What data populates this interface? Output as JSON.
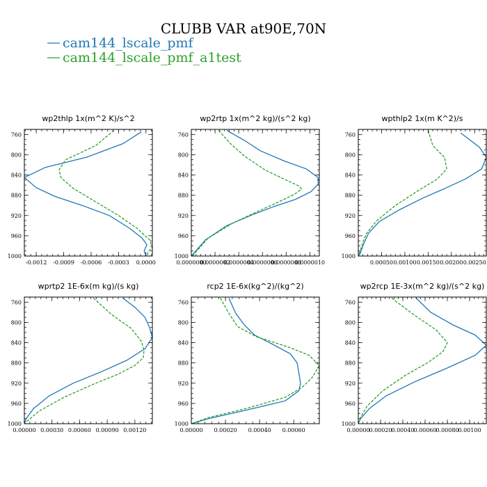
{
  "figure": {
    "title": "CLUBB VAR at90E,70N",
    "legend": [
      {
        "name": "cam144_lscale_pmf",
        "color": "#1f77b4",
        "dash": "solid"
      },
      {
        "name": "cam144_lscale_pmf_a1test",
        "color": "#2ca02c",
        "dash": "dashed"
      }
    ]
  },
  "chart_data": [
    {
      "type": "line",
      "title": "wp2thlp  1x(m^2 K)/s^2",
      "ylim": [
        1000,
        750
      ],
      "yticks": [
        {
          "v": 760,
          "t": "760"
        },
        {
          "v": 800,
          "t": "800"
        },
        {
          "v": 840,
          "t": "840"
        },
        {
          "v": 880,
          "t": "880"
        },
        {
          "v": 920,
          "t": "920"
        },
        {
          "v": 960,
          "t": "960"
        },
        {
          "v": 1000,
          "t": "1000"
        }
      ],
      "xlim": [
        -0.00133,
        7e-05
      ],
      "xticks": [
        {
          "v": -0.0012,
          "t": "-0.0012"
        },
        {
          "v": -0.0009,
          "t": "-0.0009"
        },
        {
          "v": -0.0006,
          "t": "-0.0006"
        },
        {
          "v": -0.0003,
          "t": "-0.0003"
        },
        {
          "v": 0.0,
          "t": "0.0000"
        }
      ],
      "series": [
        {
          "name": "cam144_lscale_pmf",
          "points": [
            [
              -5e-05,
              755
            ],
            [
              -0.00025,
              778
            ],
            [
              -0.00065,
              805
            ],
            [
              -0.0011,
              825
            ],
            [
              -0.00133,
              845
            ],
            [
              -0.0012,
              865
            ],
            [
              -0.001,
              882
            ],
            [
              -0.0007,
              900
            ],
            [
              -0.0004,
              920
            ],
            [
              -0.00018,
              945
            ],
            [
              -4e-05,
              965
            ],
            [
              1e-05,
              978
            ],
            [
              -2e-05,
              990
            ],
            [
              0.0,
              1000
            ]
          ]
        },
        {
          "name": "cam144_lscale_pmf_a1test",
          "points": [
            [
              -0.00035,
              752
            ],
            [
              -0.00055,
              782
            ],
            [
              -0.00088,
              810
            ],
            [
              -0.00095,
              830
            ],
            [
              -0.00093,
              845
            ],
            [
              -0.0008,
              866
            ],
            [
              -0.00055,
              893
            ],
            [
              -0.0003,
              920
            ],
            [
              -0.0001,
              945
            ],
            [
              4e-05,
              968
            ],
            [
              7e-05,
              982
            ],
            [
              2e-05,
              993
            ],
            [
              2e-05,
              1000
            ]
          ]
        }
      ]
    },
    {
      "type": "line",
      "title": "wp2rtp  1x(m^2 kg)/(s^2 kg)",
      "ylim": [
        1000,
        750
      ],
      "yticks": [
        {
          "v": 760,
          "t": "760"
        },
        {
          "v": 800,
          "t": "800"
        },
        {
          "v": 840,
          "t": "840"
        },
        {
          "v": 880,
          "t": "880"
        },
        {
          "v": 920,
          "t": "920"
        },
        {
          "v": 960,
          "t": "960"
        },
        {
          "v": 1000,
          "t": "1000"
        }
      ],
      "xlim": [
        0.0,
        1.08e-06
      ],
      "xticks": [
        {
          "v": 0.0,
          "t": "0.0000000"
        },
        {
          "v": 2e-07,
          "t": "0.0000002"
        },
        {
          "v": 4e-07,
          "t": "0.0000004"
        },
        {
          "v": 6e-07,
          "t": "0.0000006"
        },
        {
          "v": 8e-07,
          "t": "0.0000008"
        },
        {
          "v": 1e-06,
          "t": "0.0000010"
        }
      ],
      "series": [
        {
          "name": "cam144_lscale_pmf",
          "points": [
            [
              3e-07,
              752
            ],
            [
              4.5e-07,
              772
            ],
            [
              5.8e-07,
              792
            ],
            [
              7.8e-07,
              812
            ],
            [
              9.7e-07,
              828
            ],
            [
              1.07e-06,
              845
            ],
            [
              1.07e-06,
              858
            ],
            [
              1.01e-06,
              873
            ],
            [
              8.8e-07,
              888
            ],
            [
              7e-07,
              902
            ],
            [
              5.2e-07,
              918
            ],
            [
              3e-07,
              940
            ],
            [
              1.2e-07,
              968
            ],
            [
              0.0,
              1000
            ]
          ]
        },
        {
          "name": "cam144_lscale_pmf_a1test",
          "points": [
            [
              2.3e-07,
              752
            ],
            [
              3.3e-07,
              778
            ],
            [
              4.5e-07,
              803
            ],
            [
              6.2e-07,
              830
            ],
            [
              8e-07,
              850
            ],
            [
              9.1e-07,
              862
            ],
            [
              9.3e-07,
              868
            ],
            [
              8.7e-07,
              878
            ],
            [
              7.2e-07,
              895
            ],
            [
              5.5e-07,
              913
            ],
            [
              3.5e-07,
              935
            ],
            [
              1.4e-07,
              965
            ],
            [
              1e-08,
              1000
            ]
          ]
        }
      ]
    },
    {
      "type": "line",
      "title": "wpthlp2  1x(m K^2)/s",
      "ylim": [
        1000,
        750
      ],
      "yticks": [
        {
          "v": 760,
          "t": "760"
        },
        {
          "v": 800,
          "t": "800"
        },
        {
          "v": 840,
          "t": "840"
        },
        {
          "v": 880,
          "t": "880"
        },
        {
          "v": 920,
          "t": "920"
        },
        {
          "v": 960,
          "t": "960"
        },
        {
          "v": 1000,
          "t": "1000"
        }
      ],
      "xlim": [
        0.0,
        0.00275
      ],
      "xticks": [
        {
          "v": 0.0005,
          "t": "0.00050"
        },
        {
          "v": 0.001,
          "t": "0.00100"
        },
        {
          "v": 0.0015,
          "t": "0.00150"
        },
        {
          "v": 0.002,
          "t": "0.00200"
        },
        {
          "v": 0.0025,
          "t": "0.00250"
        }
      ],
      "series": [
        {
          "name": "cam144_lscale_pmf",
          "points": [
            [
              0.0022,
              757
            ],
            [
              0.0026,
              785
            ],
            [
              0.00275,
              805
            ],
            [
              0.00265,
              828
            ],
            [
              0.0023,
              848
            ],
            [
              0.0019,
              865
            ],
            [
              0.0014,
              885
            ],
            [
              0.0009,
              908
            ],
            [
              0.00045,
              932
            ],
            [
              0.00022,
              955
            ],
            [
              0.00012,
              975
            ],
            [
              4e-05,
              995
            ],
            [
              0.0,
              1000
            ]
          ]
        },
        {
          "name": "cam144_lscale_pmf_a1test",
          "points": [
            [
              0.0015,
              752
            ],
            [
              0.0016,
              782
            ],
            [
              0.00185,
              805
            ],
            [
              0.0019,
              828
            ],
            [
              0.0017,
              848
            ],
            [
              0.0013,
              870
            ],
            [
              0.0008,
              900
            ],
            [
              0.0004,
              930
            ],
            [
              0.00018,
              955
            ],
            [
              0.0001,
              972
            ],
            [
              4e-05,
              990
            ],
            [
              0.0,
              1000
            ]
          ]
        }
      ]
    },
    {
      "type": "line",
      "title": "wprtp2  1E-6x(m kg)/(s kg)",
      "ylim": [
        1000,
        750
      ],
      "yticks": [
        {
          "v": 760,
          "t": "760"
        },
        {
          "v": 800,
          "t": "800"
        },
        {
          "v": 840,
          "t": "840"
        },
        {
          "v": 880,
          "t": "880"
        },
        {
          "v": 920,
          "t": "920"
        },
        {
          "v": 960,
          "t": "960"
        },
        {
          "v": 1000,
          "t": "1000"
        }
      ],
      "xlim": [
        0.0,
        0.00139
      ],
      "xticks": [
        {
          "v": 0.0,
          "t": "0.00000"
        },
        {
          "v": 0.0003,
          "t": "0.00030"
        },
        {
          "v": 0.0006,
          "t": "0.00060"
        },
        {
          "v": 0.0009,
          "t": "0.00090"
        },
        {
          "v": 0.0012,
          "t": "0.00120"
        }
      ],
      "series": [
        {
          "name": "cam144_lscale_pmf",
          "points": [
            [
              0.00107,
              752
            ],
            [
              0.0012,
              770
            ],
            [
              0.00131,
              790
            ],
            [
              0.00136,
              810
            ],
            [
              0.00139,
              830
            ],
            [
              0.00131,
              852
            ],
            [
              0.00111,
              875
            ],
            [
              0.00083,
              898
            ],
            [
              0.00053,
              920
            ],
            [
              0.00027,
              945
            ],
            [
              0.0001,
              970
            ],
            [
              2e-05,
              990
            ],
            [
              0.0,
              1000
            ]
          ]
        },
        {
          "name": "cam144_lscale_pmf_a1test",
          "points": [
            [
              0.00075,
              752
            ],
            [
              0.00095,
              785
            ],
            [
              0.00116,
              812
            ],
            [
              0.00127,
              837
            ],
            [
              0.0013,
              855
            ],
            [
              0.00129,
              870
            ],
            [
              0.0012,
              885
            ],
            [
              0.00102,
              902
            ],
            [
              0.00075,
              922
            ],
            [
              0.00043,
              948
            ],
            [
              0.00016,
              975
            ],
            [
              3e-05,
              995
            ],
            [
              0.0,
              1000
            ]
          ]
        }
      ]
    },
    {
      "type": "line",
      "title": "rcp2  1E-6x(kg^2)/(kg^2)",
      "ylim": [
        1000,
        750
      ],
      "yticks": [
        {
          "v": 760,
          "t": "760"
        },
        {
          "v": 800,
          "t": "800"
        },
        {
          "v": 840,
          "t": "840"
        },
        {
          "v": 880,
          "t": "880"
        },
        {
          "v": 920,
          "t": "920"
        },
        {
          "v": 960,
          "t": "960"
        },
        {
          "v": 1000,
          "t": "1000"
        }
      ],
      "xlim": [
        0.0,
        0.00075
      ],
      "xticks": [
        {
          "v": 0.0,
          "t": "0.00000"
        },
        {
          "v": 0.0002,
          "t": "0.00020"
        },
        {
          "v": 0.0004,
          "t": "0.00040"
        },
        {
          "v": 0.0006,
          "t": "0.00060"
        }
      ],
      "series": [
        {
          "name": "cam144_lscale_pmf",
          "points": [
            [
              0.00022,
              752
            ],
            [
              0.00026,
              782
            ],
            [
              0.00031,
              805
            ],
            [
              0.00037,
              825
            ],
            [
              0.00047,
              842
            ],
            [
              0.00058,
              862
            ],
            [
              0.00062,
              880
            ],
            [
              0.00063,
              900
            ],
            [
              0.00064,
              920
            ],
            [
              0.00063,
              935
            ],
            [
              0.00055,
              955
            ],
            [
              0.0003,
              975
            ],
            [
              0.0001,
              990
            ],
            [
              0.0,
              1000
            ]
          ]
        },
        {
          "name": "cam144_lscale_pmf_a1test",
          "points": [
            [
              0.00017,
              752
            ],
            [
              0.00022,
              782
            ],
            [
              0.00027,
              808
            ],
            [
              0.00038,
              828
            ],
            [
              0.00058,
              850
            ],
            [
              0.00069,
              865
            ],
            [
              0.00075,
              885
            ],
            [
              0.00071,
              908
            ],
            [
              0.00065,
              928
            ],
            [
              0.00055,
              948
            ],
            [
              0.00032,
              970
            ],
            [
              0.0001,
              988
            ],
            [
              0.0,
              1000
            ]
          ]
        }
      ]
    },
    {
      "type": "line",
      "title": "wp2rcp  1E-3x(m^2 kg)/(s^2 kg)",
      "ylim": [
        1000,
        750
      ],
      "yticks": [
        {
          "v": 760,
          "t": "760"
        },
        {
          "v": 800,
          "t": "800"
        },
        {
          "v": 840,
          "t": "840"
        },
        {
          "v": 880,
          "t": "880"
        },
        {
          "v": 920,
          "t": "920"
        },
        {
          "v": 960,
          "t": "960"
        },
        {
          "v": 1000,
          "t": "1000"
        }
      ],
      "xlim": [
        0.0,
        0.00115
      ],
      "xticks": [
        {
          "v": 0.0,
          "t": "0.00000"
        },
        {
          "v": 0.0002,
          "t": "0.00020"
        },
        {
          "v": 0.0004,
          "t": "0.00040"
        },
        {
          "v": 0.0006,
          "t": "0.00060"
        },
        {
          "v": 0.0008,
          "t": "0.00080"
        },
        {
          "v": 0.001,
          "t": "0.00100"
        }
      ],
      "series": [
        {
          "name": "cam144_lscale_pmf",
          "points": [
            [
              0.00052,
              752
            ],
            [
              0.00065,
              780
            ],
            [
              0.00085,
              805
            ],
            [
              0.00105,
              825
            ],
            [
              0.00115,
              845
            ],
            [
              0.00105,
              865
            ],
            [
              0.0008,
              890
            ],
            [
              0.0005,
              918
            ],
            [
              0.00025,
              945
            ],
            [
              0.0001,
              970
            ],
            [
              2e-05,
              990
            ],
            [
              0.0,
              1000
            ]
          ]
        },
        {
          "name": "cam144_lscale_pmf_a1test",
          "points": [
            [
              0.0003,
              752
            ],
            [
              0.0005,
              785
            ],
            [
              0.0007,
              815
            ],
            [
              0.0008,
              840
            ],
            [
              0.00076,
              858
            ],
            [
              0.00062,
              880
            ],
            [
              0.00042,
              905
            ],
            [
              0.00022,
              935
            ],
            [
              8e-05,
              965
            ],
            [
              2e-05,
              988
            ],
            [
              0.0,
              1000
            ]
          ]
        }
      ]
    }
  ]
}
